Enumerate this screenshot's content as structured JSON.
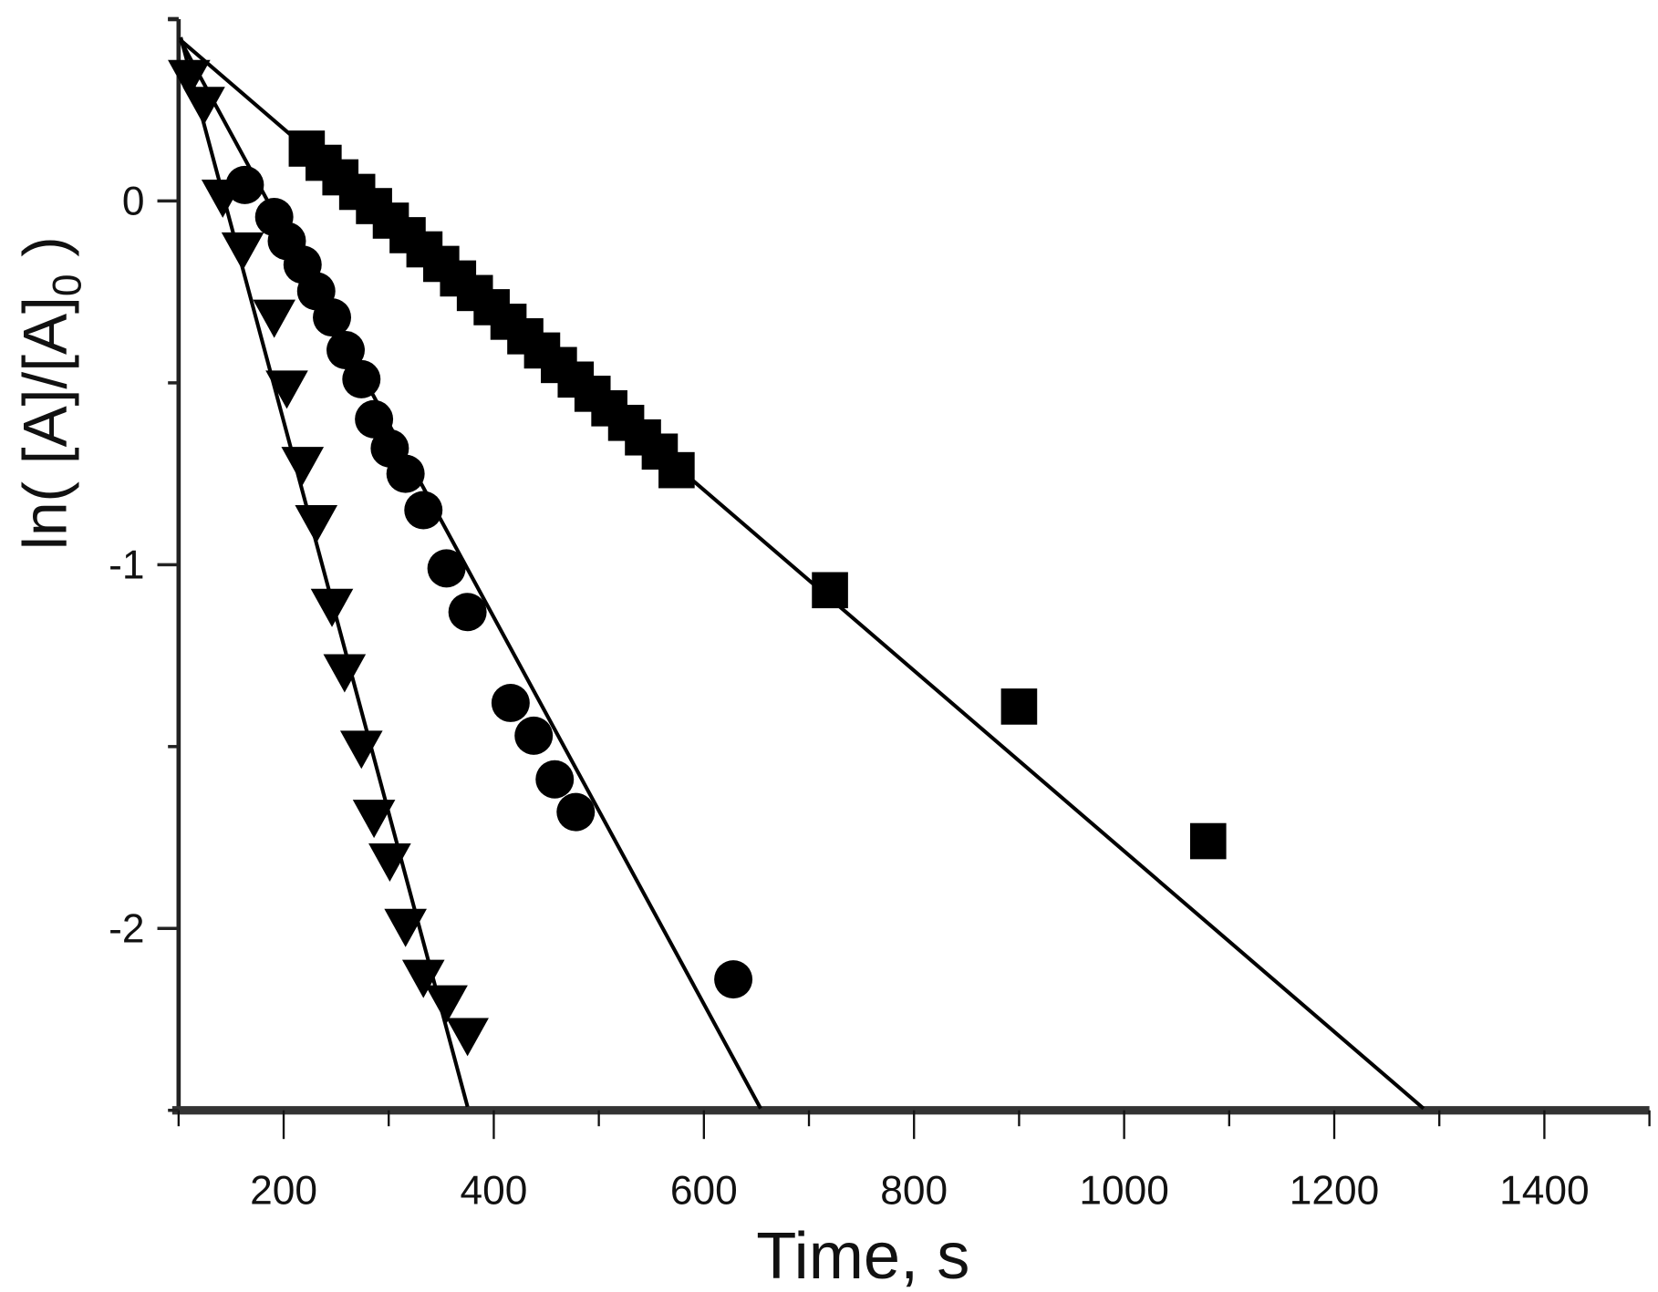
{
  "chart_data": {
    "type": "scatter",
    "title": "",
    "xlabel": "Time, s",
    "ylabel": {
      "main": "ln( [A]/[A]",
      "sub": "0",
      "tail": " )"
    },
    "xlim": [
      100,
      1500
    ],
    "ylim": [
      -2.5,
      0.5
    ],
    "x_major_ticks": [
      200,
      400,
      600,
      800,
      1000,
      1200,
      1400
    ],
    "x_minor_step": 100,
    "y_major_ticks": [
      0,
      -1,
      -2
    ],
    "y_tick_labels": [
      "0",
      "-1",
      "-2"
    ],
    "y_minor_step": 0.5,
    "grid": false,
    "legend": "none",
    "color": "#000000",
    "series": [
      {
        "marker": "square",
        "x": [
          222,
          238,
          254,
          270,
          286,
          302,
          318,
          334,
          350,
          366,
          382,
          398,
          414,
          430,
          446,
          462,
          478,
          494,
          510,
          526,
          542,
          558,
          574,
          720,
          900,
          1080
        ],
        "y": [
          0.144,
          0.105,
          0.065,
          0.025,
          -0.014,
          -0.054,
          -0.094,
          -0.133,
          -0.173,
          -0.213,
          -0.253,
          -0.292,
          -0.332,
          -0.372,
          -0.411,
          -0.451,
          -0.491,
          -0.53,
          -0.57,
          -0.61,
          -0.65,
          -0.689,
          -0.74,
          -1.07,
          -1.39,
          -1.76
        ],
        "fit_line": {
          "x": [
            101.5,
            1285
          ],
          "y": [
            0.443,
            -2.495
          ]
        }
      },
      {
        "marker": "circle",
        "x": [
          163,
          191,
          203,
          218,
          231,
          246,
          259,
          274,
          286,
          301,
          316,
          333,
          355,
          375,
          416,
          438,
          458,
          478,
          628
        ],
        "y": [
          0.044,
          -0.044,
          -0.11,
          -0.175,
          -0.248,
          -0.32,
          -0.41,
          -0.49,
          -0.6,
          -0.68,
          -0.75,
          -0.85,
          -1.01,
          -1.13,
          -1.38,
          -1.47,
          -1.59,
          -1.68,
          -2.14
        ],
        "fit_line": {
          "x": [
            102,
            654
          ],
          "y": [
            0.44,
            -2.495
          ]
        }
      },
      {
        "marker": "triangle-down",
        "x": [
          110,
          124,
          142,
          161,
          191,
          203,
          218,
          231,
          246,
          258,
          274,
          286,
          301,
          316,
          333,
          355,
          375
        ],
        "y": [
          0.344,
          0.27,
          0.015,
          -0.13,
          -0.315,
          -0.51,
          -0.72,
          -0.88,
          -1.11,
          -1.29,
          -1.5,
          -1.69,
          -1.81,
          -1.99,
          -2.13,
          -2.2,
          -2.29
        ],
        "fit_line": {
          "x": [
            102,
            375
          ],
          "y": [
            0.45,
            -2.49
          ]
        }
      }
    ]
  }
}
